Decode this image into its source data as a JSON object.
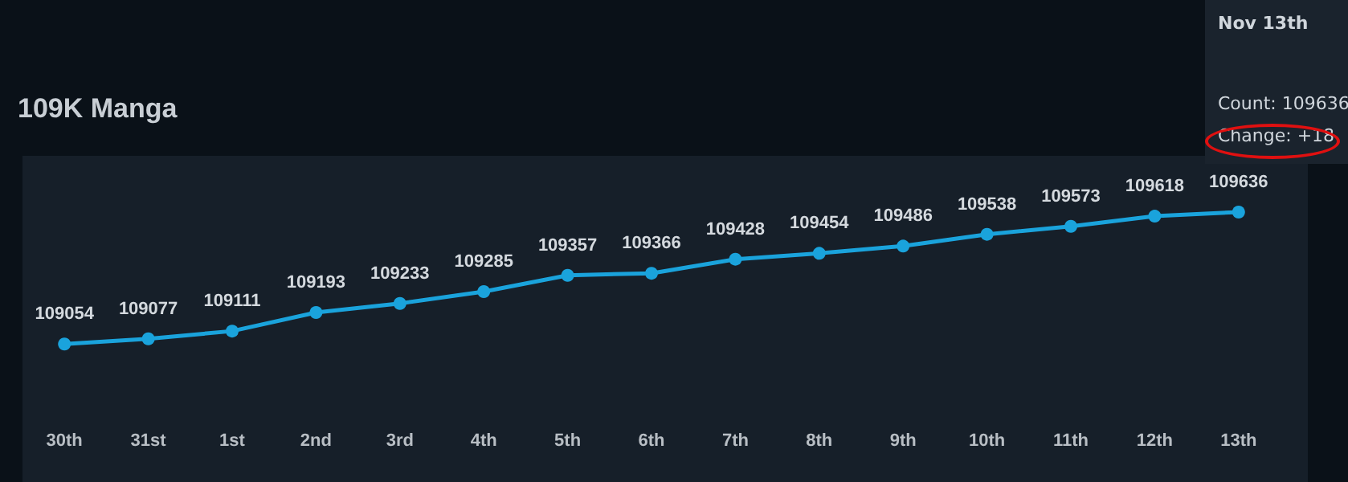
{
  "chart_data": {
    "type": "line",
    "title": "109K Manga",
    "categories": [
      "30th",
      "31st",
      "1st",
      "2nd",
      "3rd",
      "4th",
      "5th",
      "6th",
      "7th",
      "8th",
      "9th",
      "10th",
      "11th",
      "12th",
      "13th"
    ],
    "series": [
      {
        "color": "#1aa3dc",
        "values": [
          109054,
          109077,
          109111,
          109193,
          109233,
          109285,
          109357,
          109366,
          109428,
          109454,
          109486,
          109538,
          109573,
          109618,
          109636
        ]
      }
    ],
    "data_labels": true,
    "marker": "circle",
    "grid": false,
    "tick_labels": "x",
    "annotations": [
      "Nov 13th",
      "Count: 109636",
      "Change: +18"
    ]
  }
}
